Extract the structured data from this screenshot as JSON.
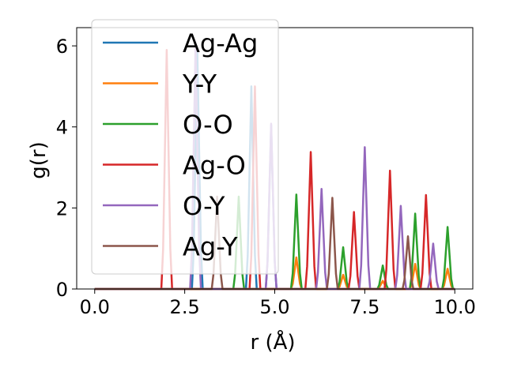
{
  "chart_data": {
    "type": "line",
    "title": "",
    "xlabel": "r (Å)",
    "ylabel": "g(r)",
    "xlim": [
      -0.5,
      10.5
    ],
    "ylim": [
      0,
      6.45
    ],
    "xticks": [
      0.0,
      2.5,
      5.0,
      7.5,
      10.0
    ],
    "xtick_labels": [
      "0.0",
      "2.5",
      "5.0",
      "7.5",
      "10.0"
    ],
    "yticks": [
      0,
      2,
      4,
      6
    ],
    "ytick_labels": [
      "0",
      "2",
      "4",
      "6"
    ],
    "grid": false,
    "legend_position": "upper-left",
    "r_range": [
      0,
      10
    ],
    "series": [
      {
        "name": "Ag-Ag",
        "color": "#1f77b4",
        "peaks": [
          [
            2.85,
            5.9
          ],
          [
            4.35,
            5.0
          ],
          [
            4.9,
            4.05
          ]
        ]
      },
      {
        "name": "Y-Y",
        "color": "#ff7f0e",
        "peaks": [
          [
            5.6,
            0.78
          ],
          [
            6.9,
            0.35
          ],
          [
            8.0,
            0.2
          ],
          [
            8.9,
            0.62
          ],
          [
            9.8,
            0.5
          ]
        ]
      },
      {
        "name": "O-O",
        "color": "#2ca02c",
        "peaks": [
          [
            4.0,
            2.28
          ],
          [
            5.6,
            2.33
          ],
          [
            6.9,
            1.03
          ],
          [
            8.0,
            0.58
          ],
          [
            8.9,
            1.86
          ],
          [
            9.8,
            1.53
          ]
        ]
      },
      {
        "name": "Ag-O",
        "color": "#d62728",
        "peaks": [
          [
            2.0,
            5.9
          ],
          [
            4.45,
            5.0
          ],
          [
            6.0,
            3.38
          ],
          [
            7.2,
            1.9
          ],
          [
            8.2,
            2.92
          ],
          [
            9.2,
            2.32
          ]
        ]
      },
      {
        "name": "O-Y",
        "color": "#9467bd",
        "peaks": [
          [
            2.8,
            6.0
          ],
          [
            4.9,
            4.08
          ],
          [
            6.3,
            2.47
          ],
          [
            7.5,
            3.5
          ],
          [
            8.5,
            2.05
          ],
          [
            9.4,
            1.12
          ]
        ]
      },
      {
        "name": "Ag-Y",
        "color": "#8c564b",
        "peaks": [
          [
            3.4,
            2.28
          ],
          [
            6.6,
            2.25
          ],
          [
            8.7,
            1.3
          ]
        ]
      }
    ]
  }
}
